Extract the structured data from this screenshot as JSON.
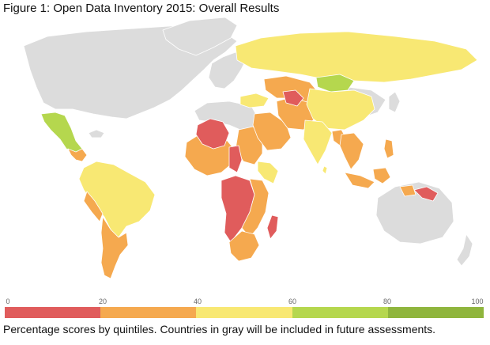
{
  "title": "Figure 1: Open Data Inventory 2015: Overall Results",
  "colors": {
    "gray": "#dcdcdc",
    "q1": "#e05c5c",
    "q2": "#f5a94f",
    "q3": "#f8e873",
    "q4": "#b5d74e",
    "q5": "#8fb53d"
  },
  "legend": {
    "ticks": [
      "0",
      "20",
      "40",
      "60",
      "80",
      "100"
    ],
    "segments": [
      {
        "range": "0–20",
        "color": "#e05c5c"
      },
      {
        "range": "20–40",
        "color": "#f5a94f"
      },
      {
        "range": "40–60",
        "color": "#f8e873"
      },
      {
        "range": "60–80",
        "color": "#b5d74e"
      },
      {
        "range": "80–100",
        "color": "#8fb53d"
      }
    ]
  },
  "caption": "Percentage scores by quintiles. Countries in gray will be included in future assessments."
}
